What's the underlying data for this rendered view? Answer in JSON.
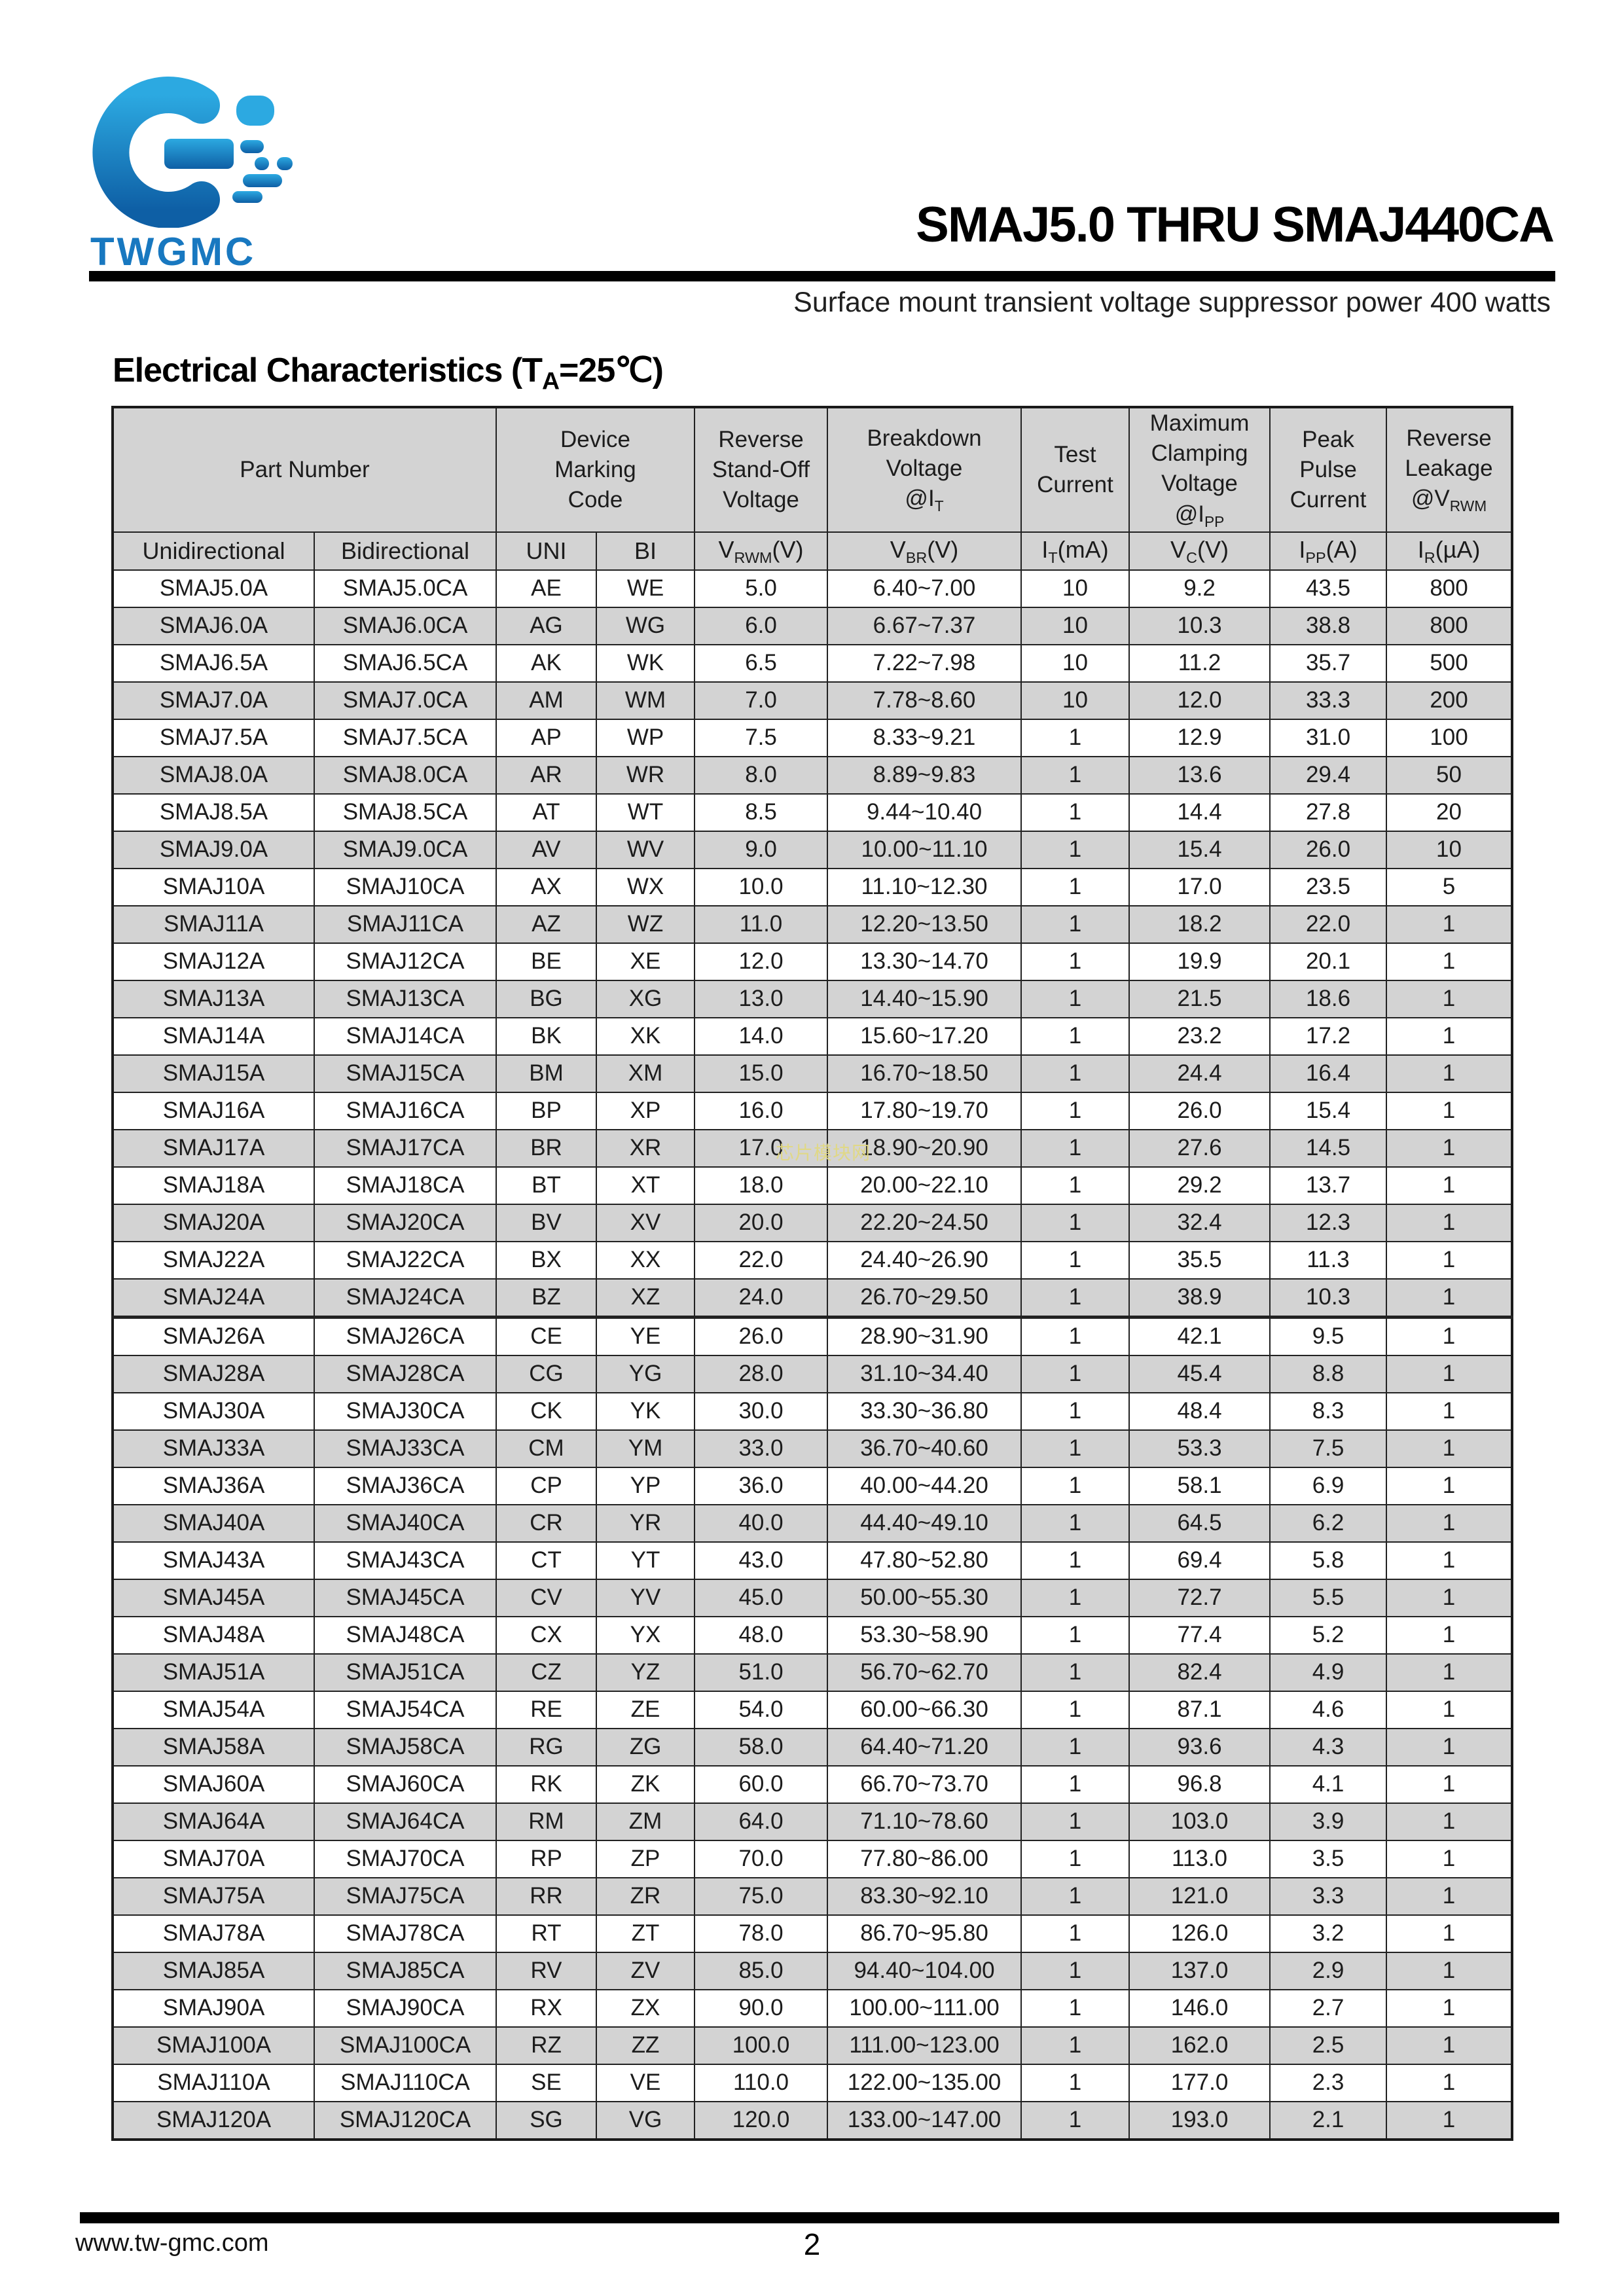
{
  "header": {
    "logo_text": "TWGMC",
    "title": "SMAJ5.0 THRU SMAJ440CA",
    "subtitle": "Surface mount transient  voltage suppressor power 400 watts"
  },
  "section": {
    "heading": "Electrical Characteristics (T~A~=25℃)"
  },
  "table": {
    "group_headers": [
      "Part Number",
      "Device\nMarking\nCode",
      "Reverse\nStand-Off\nVoltage",
      "Breakdown\nVoltage\n@I~T~",
      "Test\nCurrent",
      "Maximum\nClamping\nVoltage\n@I~PP~",
      "Peak\nPulse\nCurrent",
      "Reverse\nLeakage\n@V~RWM~"
    ],
    "sub_headers": [
      "Unidirectional",
      "Bidirectional",
      "UNI",
      "BI",
      "V~RWM~(V)",
      "V~BR~(V)",
      "I~T~(mA)",
      "V~C~(V)",
      "I~PP~(A)",
      "I~R~(µA)"
    ],
    "rows": [
      [
        "SMAJ5.0A",
        "SMAJ5.0CA",
        "AE",
        "WE",
        "5.0",
        "6.40~7.00",
        "10",
        "9.2",
        "43.5",
        "800"
      ],
      [
        "SMAJ6.0A",
        "SMAJ6.0CA",
        "AG",
        "WG",
        "6.0",
        "6.67~7.37",
        "10",
        "10.3",
        "38.8",
        "800"
      ],
      [
        "SMAJ6.5A",
        "SMAJ6.5CA",
        "AK",
        "WK",
        "6.5",
        "7.22~7.98",
        "10",
        "11.2",
        "35.7",
        "500"
      ],
      [
        "SMAJ7.0A",
        "SMAJ7.0CA",
        "AM",
        "WM",
        "7.0",
        "7.78~8.60",
        "10",
        "12.0",
        "33.3",
        "200"
      ],
      [
        "SMAJ7.5A",
        "SMAJ7.5CA",
        "AP",
        "WP",
        "7.5",
        "8.33~9.21",
        "1",
        "12.9",
        "31.0",
        "100"
      ],
      [
        "SMAJ8.0A",
        "SMAJ8.0CA",
        "AR",
        "WR",
        "8.0",
        "8.89~9.83",
        "1",
        "13.6",
        "29.4",
        "50"
      ],
      [
        "SMAJ8.5A",
        "SMAJ8.5CA",
        "AT",
        "WT",
        "8.5",
        "9.44~10.40",
        "1",
        "14.4",
        "27.8",
        "20"
      ],
      [
        "SMAJ9.0A",
        "SMAJ9.0CA",
        "AV",
        "WV",
        "9.0",
        "10.00~11.10",
        "1",
        "15.4",
        "26.0",
        "10"
      ],
      [
        "SMAJ10A",
        "SMAJ10CA",
        "AX",
        "WX",
        "10.0",
        "11.10~12.30",
        "1",
        "17.0",
        "23.5",
        "5"
      ],
      [
        "SMAJ11A",
        "SMAJ11CA",
        "AZ",
        "WZ",
        "11.0",
        "12.20~13.50",
        "1",
        "18.2",
        "22.0",
        "1"
      ],
      [
        "SMAJ12A",
        "SMAJ12CA",
        "BE",
        "XE",
        "12.0",
        "13.30~14.70",
        "1",
        "19.9",
        "20.1",
        "1"
      ],
      [
        "SMAJ13A",
        "SMAJ13CA",
        "BG",
        "XG",
        "13.0",
        "14.40~15.90",
        "1",
        "21.5",
        "18.6",
        "1"
      ],
      [
        "SMAJ14A",
        "SMAJ14CA",
        "BK",
        "XK",
        "14.0",
        "15.60~17.20",
        "1",
        "23.2",
        "17.2",
        "1"
      ],
      [
        "SMAJ15A",
        "SMAJ15CA",
        "BM",
        "XM",
        "15.0",
        "16.70~18.50",
        "1",
        "24.4",
        "16.4",
        "1"
      ],
      [
        "SMAJ16A",
        "SMAJ16CA",
        "BP",
        "XP",
        "16.0",
        "17.80~19.70",
        "1",
        "26.0",
        "15.4",
        "1"
      ],
      [
        "SMAJ17A",
        "SMAJ17CA",
        "BR",
        "XR",
        "17.0",
        "18.90~20.90",
        "1",
        "27.6",
        "14.5",
        "1"
      ],
      [
        "SMAJ18A",
        "SMAJ18CA",
        "BT",
        "XT",
        "18.0",
        "20.00~22.10",
        "1",
        "29.2",
        "13.7",
        "1"
      ],
      [
        "SMAJ20A",
        "SMAJ20CA",
        "BV",
        "XV",
        "20.0",
        "22.20~24.50",
        "1",
        "32.4",
        "12.3",
        "1"
      ],
      [
        "SMAJ22A",
        "SMAJ22CA",
        "BX",
        "XX",
        "22.0",
        "24.40~26.90",
        "1",
        "35.5",
        "11.3",
        "1"
      ],
      [
        "SMAJ24A",
        "SMAJ24CA",
        "BZ",
        "XZ",
        "24.0",
        "26.70~29.50",
        "1",
        "38.9",
        "10.3",
        "1"
      ],
      [
        "SMAJ26A",
        "SMAJ26CA",
        "CE",
        "YE",
        "26.0",
        "28.90~31.90",
        "1",
        "42.1",
        "9.5",
        "1"
      ],
      [
        "SMAJ28A",
        "SMAJ28CA",
        "CG",
        "YG",
        "28.0",
        "31.10~34.40",
        "1",
        "45.4",
        "8.8",
        "1"
      ],
      [
        "SMAJ30A",
        "SMAJ30CA",
        "CK",
        "YK",
        "30.0",
        "33.30~36.80",
        "1",
        "48.4",
        "8.3",
        "1"
      ],
      [
        "SMAJ33A",
        "SMAJ33CA",
        "CM",
        "YM",
        "33.0",
        "36.70~40.60",
        "1",
        "53.3",
        "7.5",
        "1"
      ],
      [
        "SMAJ36A",
        "SMAJ36CA",
        "CP",
        "YP",
        "36.0",
        "40.00~44.20",
        "1",
        "58.1",
        "6.9",
        "1"
      ],
      [
        "SMAJ40A",
        "SMAJ40CA",
        "CR",
        "YR",
        "40.0",
        "44.40~49.10",
        "1",
        "64.5",
        "6.2",
        "1"
      ],
      [
        "SMAJ43A",
        "SMAJ43CA",
        "CT",
        "YT",
        "43.0",
        "47.80~52.80",
        "1",
        "69.4",
        "5.8",
        "1"
      ],
      [
        "SMAJ45A",
        "SMAJ45CA",
        "CV",
        "YV",
        "45.0",
        "50.00~55.30",
        "1",
        "72.7",
        "5.5",
        "1"
      ],
      [
        "SMAJ48A",
        "SMAJ48CA",
        "CX",
        "YX",
        "48.0",
        "53.30~58.90",
        "1",
        "77.4",
        "5.2",
        "1"
      ],
      [
        "SMAJ51A",
        "SMAJ51CA",
        "CZ",
        "YZ",
        "51.0",
        "56.70~62.70",
        "1",
        "82.4",
        "4.9",
        "1"
      ],
      [
        "SMAJ54A",
        "SMAJ54CA",
        "RE",
        "ZE",
        "54.0",
        "60.00~66.30",
        "1",
        "87.1",
        "4.6",
        "1"
      ],
      [
        "SMAJ58A",
        "SMAJ58CA",
        "RG",
        "ZG",
        "58.0",
        "64.40~71.20",
        "1",
        "93.6",
        "4.3",
        "1"
      ],
      [
        "SMAJ60A",
        "SMAJ60CA",
        "RK",
        "ZK",
        "60.0",
        "66.70~73.70",
        "1",
        "96.8",
        "4.1",
        "1"
      ],
      [
        "SMAJ64A",
        "SMAJ64CA",
        "RM",
        "ZM",
        "64.0",
        "71.10~78.60",
        "1",
        "103.0",
        "3.9",
        "1"
      ],
      [
        "SMAJ70A",
        "SMAJ70CA",
        "RP",
        "ZP",
        "70.0",
        "77.80~86.00",
        "1",
        "113.0",
        "3.5",
        "1"
      ],
      [
        "SMAJ75A",
        "SMAJ75CA",
        "RR",
        "ZR",
        "75.0",
        "83.30~92.10",
        "1",
        "121.0",
        "3.3",
        "1"
      ],
      [
        "SMAJ78A",
        "SMAJ78CA",
        "RT",
        "ZT",
        "78.0",
        "86.70~95.80",
        "1",
        "126.0",
        "3.2",
        "1"
      ],
      [
        "SMAJ85A",
        "SMAJ85CA",
        "RV",
        "ZV",
        "85.0",
        "94.40~104.00",
        "1",
        "137.0",
        "2.9",
        "1"
      ],
      [
        "SMAJ90A",
        "SMAJ90CA",
        "RX",
        "ZX",
        "90.0",
        "100.00~111.00",
        "1",
        "146.0",
        "2.7",
        "1"
      ],
      [
        "SMAJ100A",
        "SMAJ100CA",
        "RZ",
        "ZZ",
        "100.0",
        "111.00~123.00",
        "1",
        "162.0",
        "2.5",
        "1"
      ],
      [
        "SMAJ110A",
        "SMAJ110CA",
        "SE",
        "VE",
        "110.0",
        "122.00~135.00",
        "1",
        "177.0",
        "2.3",
        "1"
      ],
      [
        "SMAJ120A",
        "SMAJ120CA",
        "SG",
        "VG",
        "120.0",
        "133.00~147.00",
        "1",
        "193.0",
        "2.1",
        "1"
      ]
    ]
  },
  "watermark": "芯片模块网",
  "footer": {
    "website": "www.tw-gmc.com",
    "page_number": "2"
  },
  "colors": {
    "header_bg": "#d3d3d3",
    "row_alt_bg": "#d3d3d3",
    "border": "#222222",
    "logo_blue_light": "#2CA9E1",
    "logo_blue_dark": "#0E5FA5",
    "logo_text_blue": "#1878c0",
    "watermark_yellow": "#e0d882"
  }
}
